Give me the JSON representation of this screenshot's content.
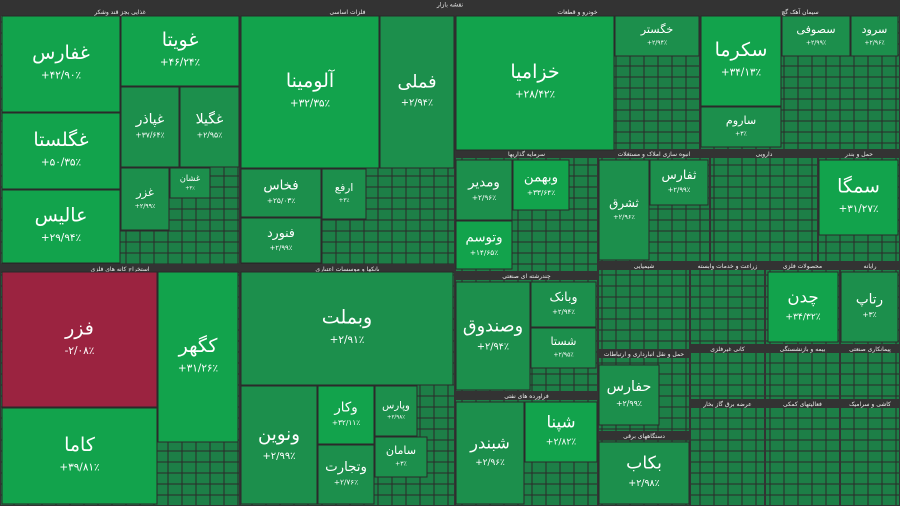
{
  "title": "نقشه بازار",
  "sectors": [
    {
      "name": "غذایی بجز قند وشکر",
      "tiles": [
        {
          "name": "غفارس",
          "change": "+۴۲/۹۰٪",
          "color": "#12a34c"
        },
        {
          "name": "غگلستا",
          "change": "+۵۰/۳۵٪",
          "color": "#12a34c"
        },
        {
          "name": "عالیس",
          "change": "+۲۹/۹۴٪",
          "color": "#12a34c"
        },
        {
          "name": "غویتا",
          "change": "+۴۶/۲۴٪",
          "color": "#12a34c"
        },
        {
          "name": "غپاذر",
          "change": "+۳۷/۶۴٪",
          "color": "#1c8f4c"
        },
        {
          "name": "غگیلا",
          "change": "+۲/۹۵٪",
          "color": "#1c8f4c"
        },
        {
          "name": "غزر",
          "change": "+۲/۹۹٪",
          "color": "#1c8f4c"
        },
        {
          "name": "غشان",
          "change": "+۳٪",
          "color": "#1c8f4c"
        }
      ]
    },
    {
      "name": "فلزات اساسی",
      "tiles": [
        {
          "name": "آلومینا",
          "change": "+۳۲/۳۵٪",
          "color": "#12a34c"
        },
        {
          "name": "فملی",
          "change": "+۲/۹۴٪",
          "color": "#1c8f4c"
        },
        {
          "name": "فخاس",
          "change": "+۲۵/۰۳٪",
          "color": "#1c8f4c"
        },
        {
          "name": "فنورد",
          "change": "+۲/۹۹٪",
          "color": "#1c8f4c"
        },
        {
          "name": "ارفع",
          "change": "+۳٪",
          "color": "#1c8f4c"
        }
      ]
    },
    {
      "name": "بانکها و موسسات اعتباری",
      "tiles": [
        {
          "name": "وبملت",
          "change": "+۲/۹۱٪",
          "color": "#1c8f4c"
        },
        {
          "name": "ونوین",
          "change": "+۲/۹۹٪",
          "color": "#1c8f4c"
        },
        {
          "name": "وکار",
          "change": "+۳۲/۱۱٪",
          "color": "#12a34c"
        },
        {
          "name": "وتجارت",
          "change": "+۲/۷۶٪",
          "color": "#1c8f4c"
        },
        {
          "name": "وپارس",
          "change": "+۲/۹۸٪",
          "color": "#1c8f4c"
        },
        {
          "name": "سامان",
          "change": "+۳٪",
          "color": "#1c8f4c"
        }
      ]
    },
    {
      "name": "استخراج کانه های فلزی",
      "tiles": [
        {
          "name": "فزر",
          "change": "-۲/۰۸٪",
          "color": "#9b2340"
        },
        {
          "name": "کگهر",
          "change": "+۳۱/۲۶٪",
          "color": "#12a34c"
        },
        {
          "name": "کاما",
          "change": "+۳۹/۸۱٪",
          "color": "#12a34c"
        }
      ]
    },
    {
      "name": "خودرو و قطعات",
      "tiles": [
        {
          "name": "خزامیا",
          "change": "+۲۸/۴۲٪",
          "color": "#12a34c"
        },
        {
          "name": "خگستر",
          "change": "+۲/۹۴٪",
          "color": "#1c8f4c"
        }
      ]
    },
    {
      "name": "سیمان آهک گچ",
      "tiles": [
        {
          "name": "سکرما",
          "change": "+۳۴/۱۳٪",
          "color": "#12a34c"
        },
        {
          "name": "سصوفی",
          "change": "+۲/۹۹٪",
          "color": "#1c8f4c"
        },
        {
          "name": "سرود",
          "change": "+۲/۹۶٪",
          "color": "#1c8f4c"
        },
        {
          "name": "ساروم",
          "change": "+۳٪",
          "color": "#1c8f4c"
        }
      ]
    },
    {
      "name": "سرمایه گذاریها",
      "tiles": [
        {
          "name": "ومدیر",
          "change": "+۲/۹۶٪",
          "color": "#1c8f4c"
        },
        {
          "name": "وبهمن",
          "change": "+۳۳/۶۴٪",
          "color": "#12a34c"
        },
        {
          "name": "وتوسم",
          "change": "+۱۴/۶۵٪",
          "color": "#12a34c"
        }
      ]
    },
    {
      "name": "انبوه سازی املاک و مستغلات",
      "tiles": [
        {
          "name": "ثشرق",
          "change": "+۲/۹۶٪",
          "color": "#1c8f4c"
        },
        {
          "name": "ثفارس",
          "change": "+۲/۹۹٪",
          "color": "#1c8f4c"
        }
      ]
    },
    {
      "name": "دارویی",
      "tiles": []
    },
    {
      "name": "حمل و بندر",
      "tiles": [
        {
          "name": "سمگا",
          "change": "+۳۱/۲۷٪",
          "color": "#12a34c"
        }
      ]
    },
    {
      "name": "چندرشته ای صنعتی",
      "tiles": [
        {
          "name": "وصندوق",
          "change": "+۲/۹۴٪",
          "color": "#1c8f4c"
        },
        {
          "name": "وبانک",
          "change": "+۲/۹۴٪",
          "color": "#1c8f4c"
        },
        {
          "name": "شستا",
          "change": "+۲/۹۵٪",
          "color": "#1c8f4c"
        }
      ]
    },
    {
      "name": "فراورده های نفتی",
      "tiles": [
        {
          "name": "شبندر",
          "change": "+۲/۹۶٪",
          "color": "#1c8f4c"
        },
        {
          "name": "شپنا",
          "change": "+۲/۸۲٪",
          "color": "#12a34c"
        }
      ]
    },
    {
      "name": "شیمیایی",
      "tiles": []
    },
    {
      "name": "زراعت و خدمات وابسته",
      "tiles": []
    },
    {
      "name": "محصولات فلزی",
      "tiles": [
        {
          "name": "چدن",
          "change": "+۳۴/۳۲٪",
          "color": "#12a34c"
        }
      ]
    },
    {
      "name": "رایانه",
      "tiles": [
        {
          "name": "رتاپ",
          "change": "+۳٪",
          "color": "#1c8f4c"
        }
      ]
    },
    {
      "name": "حمل و نقل انبارداری و ارتباطات",
      "tiles": [
        {
          "name": "حفارس",
          "change": "+۲/۹۹٪",
          "color": "#1c8f4c"
        }
      ]
    },
    {
      "name": "دستگاههای برقی",
      "tiles": [
        {
          "name": "بکاب",
          "change": "+۲/۹۸٪",
          "color": "#1c8f4c"
        }
      ]
    },
    {
      "name": "کانی غیرفلزی",
      "tiles": []
    },
    {
      "name": "بیمه و بازنشستگی",
      "tiles": []
    },
    {
      "name": "پیمانکاری صنعتی",
      "tiles": []
    },
    {
      "name": "عرضه برق گاز بخار",
      "tiles": []
    },
    {
      "name": "کاشی و سرامیک",
      "tiles": []
    },
    {
      "name": "فعالیتهای کمکی",
      "tiles": []
    }
  ]
}
